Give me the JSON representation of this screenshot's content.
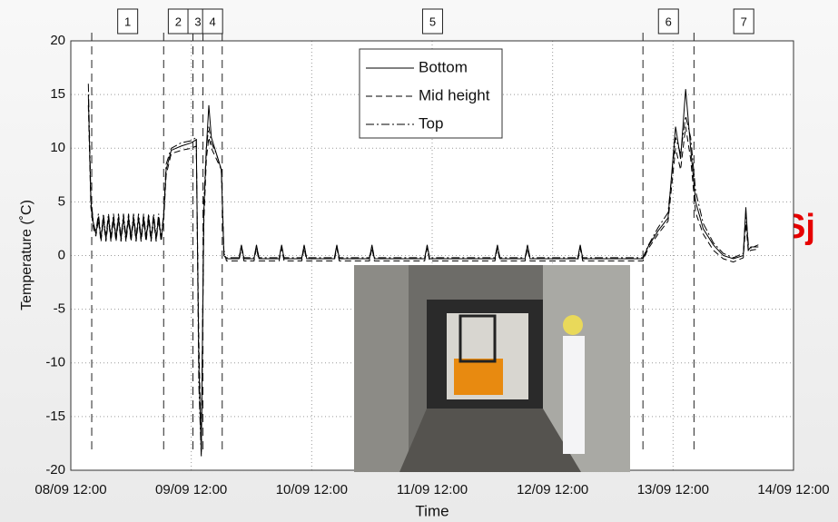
{
  "chart_data": {
    "type": "line",
    "xlabel": "Time",
    "ylabel": "Temperature (˚C)",
    "xlim": [
      "08/09 12:00",
      "14/09 12:00"
    ],
    "xticks": [
      "08/09 12:00",
      "09/09 12:00",
      "10/09 12:00",
      "11/09 12:00",
      "12/09 12:00",
      "13/09 12:00",
      "14/09 12:00"
    ],
    "ylim": [
      -20,
      20
    ],
    "yticks": [
      20,
      15,
      10,
      5,
      0,
      -5,
      -10,
      -15,
      -20
    ],
    "grid": true,
    "legend": "top-center",
    "phases": {
      "labels": [
        "1",
        "2",
        "3",
        "4",
        "5",
        "6",
        "7"
      ],
      "boundaries": [
        "08/09 16:10",
        "09/09 06:30",
        "09/09 12:20",
        "09/09 14:20",
        "09/09 18:10",
        "13/09 06:00",
        "13/09 16:10"
      ]
    },
    "x": [
      "08/09 15:30",
      "08/09 16:00",
      "08/09 16:30",
      "08/09 17:00",
      "08/09 17:30",
      "08/09 18:00",
      "08/09 18:30",
      "08/09 19:00",
      "08/09 19:30",
      "08/09 20:00",
      "08/09 20:30",
      "08/09 21:00",
      "08/09 21:30",
      "08/09 22:00",
      "08/09 22:30",
      "08/09 23:00",
      "08/09 23:30",
      "09/09 00:00",
      "09/09 00:30",
      "09/09 01:00",
      "09/09 01:30",
      "09/09 02:00",
      "09/09 02:30",
      "09/09 03:00",
      "09/09 03:30",
      "09/09 04:00",
      "09/09 04:30",
      "09/09 05:00",
      "09/09 05:30",
      "09/09 06:00",
      "09/09 06:30",
      "09/09 07:00",
      "09/09 08:00",
      "09/09 10:00",
      "09/09 12:00",
      "09/09 13:00",
      "09/09 13:30",
      "09/09 14:00",
      "09/09 14:30",
      "09/09 15:00",
      "09/09 15:30",
      "09/09 16:00",
      "09/09 17:00",
      "09/09 18:00",
      "09/09 18:30",
      "09/09 19:00",
      "09/09 21:30",
      "09/09 22:00",
      "09/09 22:30",
      "10/09 00:30",
      "10/09 01:00",
      "10/09 01:30",
      "10/09 05:30",
      "10/09 06:00",
      "10/09 06:30",
      "10/09 10:00",
      "10/09 10:30",
      "10/09 11:00",
      "10/09 16:30",
      "10/09 17:00",
      "10/09 17:30",
      "10/09 23:30",
      "11/09 00:00",
      "11/09 00:30",
      "11/09 10:30",
      "11/09 11:00",
      "11/09 11:30",
      "12/09 00:30",
      "12/09 01:00",
      "12/09 01:30",
      "12/09 06:30",
      "12/09 07:00",
      "12/09 07:30",
      "12/09 17:00",
      "12/09 17:30",
      "12/09 18:00",
      "13/09 06:00",
      "13/09 07:00",
      "13/09 09:00",
      "13/09 11:00",
      "13/09 12:30",
      "13/09 13:30",
      "13/09 14:30",
      "13/09 15:30",
      "13/09 16:30",
      "13/09 18:00",
      "13/09 20:00",
      "13/09 22:00",
      "14/09 00:00",
      "14/09 02:00",
      "14/09 02:30",
      "14/09 03:00",
      "14/09 03:30",
      "14/09 05:00"
    ],
    "series": [
      {
        "name": "Bottom",
        "color": "#000000",
        "line_style": "solid",
        "values": [
          15,
          5,
          3,
          2,
          3.6,
          1.5,
          3.6,
          1.5,
          3.6,
          1.5,
          3.6,
          1.5,
          3.6,
          1.5,
          3.6,
          1.5,
          3.6,
          1.5,
          3.6,
          1.5,
          3.6,
          1.5,
          3.6,
          1.5,
          3.6,
          1.5,
          3.6,
          1.5,
          3.6,
          1.5,
          3.6,
          8,
          9.8,
          10.2,
          10.5,
          10.8,
          -10,
          -18.5,
          4,
          10,
          14,
          11,
          9.5,
          8,
          0,
          -0.3,
          -0.3,
          1,
          -0.3,
          -0.3,
          1,
          -0.3,
          -0.3,
          1,
          -0.3,
          -0.3,
          1,
          -0.3,
          -0.3,
          1,
          -0.3,
          -0.3,
          1,
          -0.3,
          -0.3,
          1,
          -0.3,
          -0.3,
          1,
          -0.3,
          -0.3,
          1,
          -0.3,
          -0.3,
          1,
          -0.3,
          -0.3,
          0.8,
          2.3,
          3.5,
          12,
          9,
          15.5,
          10,
          5,
          2.5,
          1,
          0,
          -0.3,
          0,
          4.5,
          0.5,
          0.8,
          0.8
        ]
      },
      {
        "name": "Mid height",
        "color": "#000000",
        "line_style": "dashed",
        "values": [
          14,
          4.5,
          2.5,
          1.8,
          3.3,
          1.3,
          3.3,
          1.3,
          3.3,
          1.3,
          3.3,
          1.3,
          3.3,
          1.3,
          3.3,
          1.3,
          3.3,
          1.3,
          3.3,
          1.3,
          3.3,
          1.3,
          3.3,
          1.3,
          3.3,
          1.3,
          3.3,
          1.3,
          3.3,
          1.3,
          3.3,
          7.5,
          9.5,
          9.8,
          10,
          10.2,
          -8,
          -18,
          3,
          9,
          11,
          10,
          9,
          8,
          0.5,
          -0.5,
          -0.5,
          0.7,
          -0.5,
          -0.5,
          0.7,
          -0.5,
          -0.5,
          0.7,
          -0.5,
          -0.5,
          0.7,
          -0.5,
          -0.5,
          0.7,
          -0.5,
          -0.5,
          0.7,
          -0.5,
          -0.5,
          0.7,
          -0.5,
          -0.5,
          0.7,
          -0.5,
          -0.5,
          0.7,
          -0.5,
          -0.5,
          0.7,
          -0.5,
          -0.5,
          0.6,
          2,
          3.2,
          10,
          8,
          12,
          9,
          4,
          2,
          0.5,
          -0.3,
          -0.6,
          -0.2,
          3,
          0.3,
          0.5,
          0.6
        ]
      },
      {
        "name": "Top",
        "color": "#000000",
        "line_style": "dashdot",
        "values": [
          16,
          5.5,
          3,
          2.2,
          3.9,
          1.7,
          3.9,
          1.7,
          3.9,
          1.7,
          3.9,
          1.7,
          3.9,
          1.7,
          3.9,
          1.7,
          3.9,
          1.7,
          3.9,
          1.7,
          3.9,
          1.7,
          3.9,
          1.7,
          3.9,
          1.7,
          3.9,
          1.7,
          3.9,
          1.7,
          3.9,
          8.5,
          10,
          10.5,
          10.7,
          11,
          -12,
          -18.8,
          5,
          10,
          12,
          10.5,
          9.5,
          8,
          0.2,
          -0.2,
          -0.2,
          0.9,
          -0.2,
          -0.2,
          0.9,
          -0.2,
          -0.2,
          0.9,
          -0.2,
          -0.2,
          0.9,
          -0.2,
          -0.2,
          0.9,
          -0.2,
          -0.2,
          0.9,
          -0.2,
          -0.2,
          0.9,
          -0.2,
          -0.2,
          0.9,
          -0.2,
          -0.2,
          0.9,
          -0.2,
          -0.2,
          0.9,
          -0.2,
          -0.2,
          0.9,
          2.6,
          4,
          11,
          9.5,
          13,
          11,
          6,
          3,
          1.2,
          0.2,
          -0.2,
          0.2,
          4,
          1,
          0.7,
          1
        ]
      }
    ]
  },
  "slide_text": {
    "text": "Sj",
    "color": "#e60000"
  }
}
